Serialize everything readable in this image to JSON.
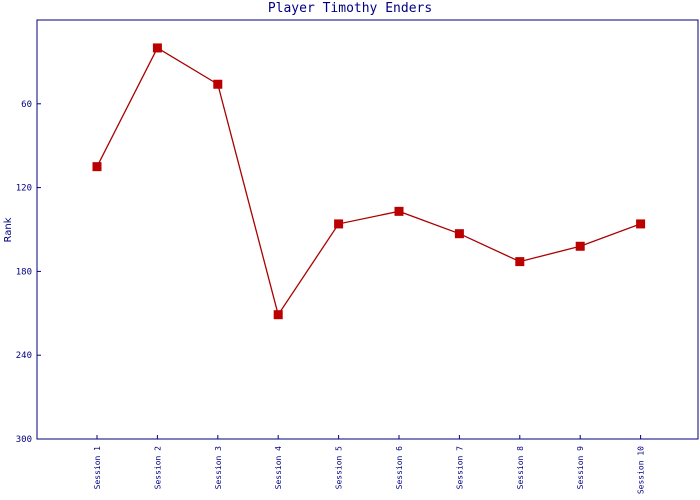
{
  "chart_data": {
    "type": "line",
    "title": "Player Timothy Enders",
    "xlabel": "",
    "ylabel": "Rank",
    "categories": [
      "Session 1",
      "Session 2",
      "Session 3",
      "Session 4",
      "Session 5",
      "Session 6",
      "Session 7",
      "Session 8",
      "Session 9",
      "Session 10"
    ],
    "series": [
      {
        "values": [
          105,
          20,
          46,
          211,
          146,
          137,
          153,
          173,
          162,
          146
        ]
      }
    ],
    "ylim": [
      0,
      300
    ],
    "y_inverted": true,
    "y_ticks": [
      60,
      120,
      180,
      240,
      300
    ],
    "grid": false,
    "colors": {
      "axis": "#000080",
      "line": "#aa0000",
      "marker": "#bb0000"
    }
  }
}
